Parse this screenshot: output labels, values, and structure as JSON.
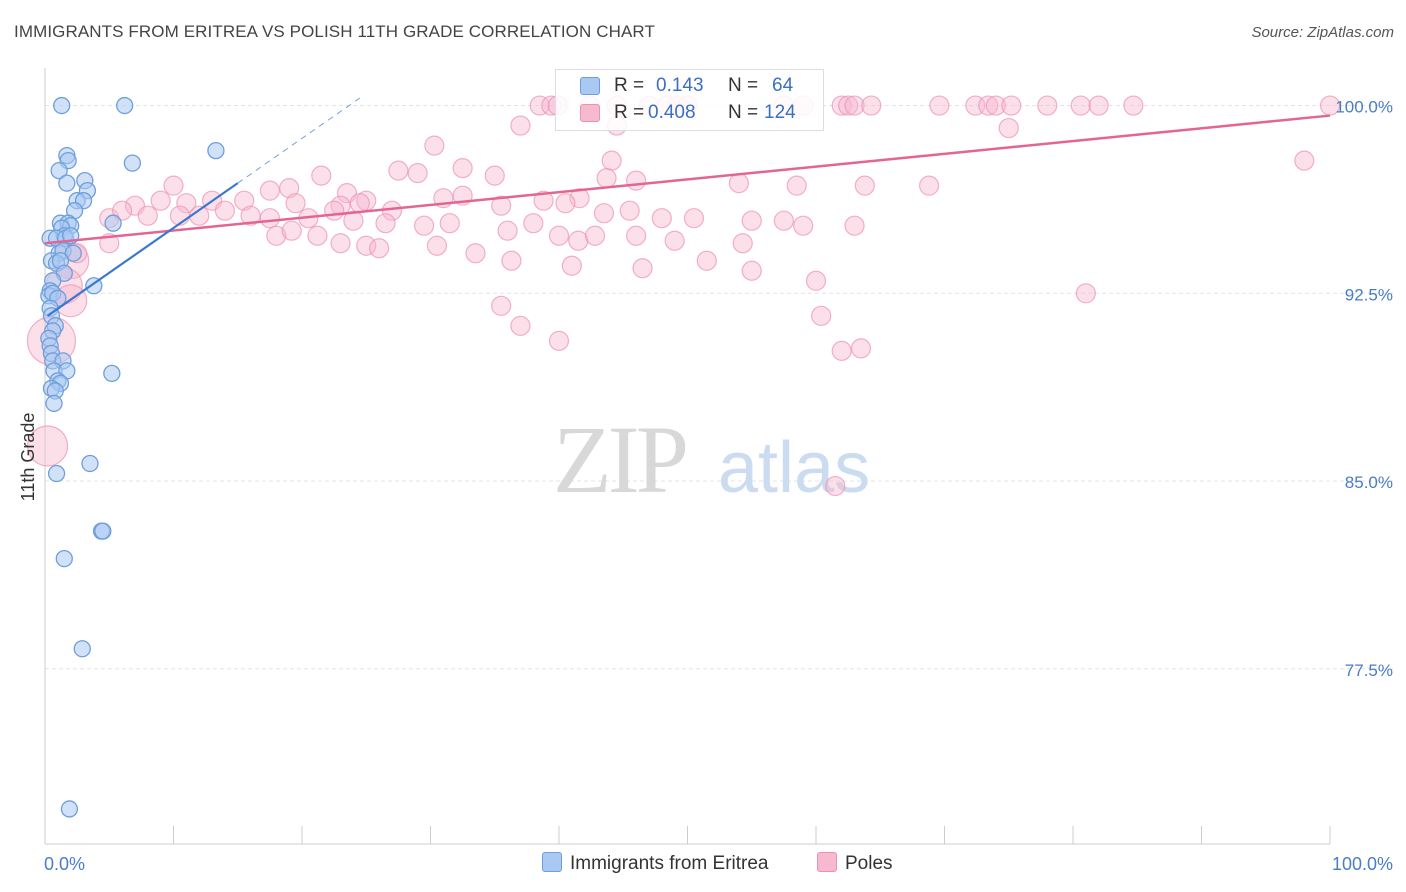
{
  "header": {
    "title": "IMMIGRANTS FROM ERITREA VS POLISH 11TH GRADE CORRELATION CHART",
    "source": "Source: ZipAtlas.com"
  },
  "watermark": {
    "zip": "ZIP",
    "atlas": "atlas"
  },
  "legend": {
    "rows": [
      {
        "r_label": "R =",
        "r_value": "0.143",
        "n_label": "N =",
        "n_value": "64"
      },
      {
        "r_label": "R =",
        "r_value": "0.408",
        "n_label": "N =",
        "n_value": "124"
      }
    ]
  },
  "bottom_legend": {
    "series1": "Immigrants from Eritrea",
    "series2": "Poles"
  },
  "colors": {
    "blue_fill": "#a9c8f2",
    "blue_stroke": "#6e9fdc",
    "blue_line": "#3a78d0",
    "pink_fill": "#f6b9cf",
    "pink_stroke": "#ec91b2",
    "pink_line": "#e36593",
    "tick_label": "#4a7cc7",
    "grid": "#e3e3e3"
  },
  "chart_data": {
    "type": "scatter",
    "title": "IMMIGRANTS FROM ERITREA VS POLISH 11TH GRADE CORRELATION CHART",
    "xlabel": "",
    "ylabel": "11th Grade",
    "xlim": [
      0,
      100
    ],
    "ylim": [
      70.5,
      101.5
    ],
    "x_tick_labels": [
      "0.0%",
      "100.0%"
    ],
    "y_ticks": [
      100.0,
      92.5,
      85.0,
      77.5
    ],
    "y_tick_labels": [
      "100.0%",
      "92.5%",
      "85.0%",
      "77.5%"
    ],
    "grid": true,
    "legend_position": "top-center",
    "series": [
      {
        "name": "Immigrants from Eritrea",
        "r": 0.143,
        "n": 64,
        "trend": {
          "x": [
            0.2,
            15.0
          ],
          "y": [
            91.6,
            96.9
          ],
          "dashed_to": {
            "x": 24.5,
            "y": 100.3
          }
        },
        "points": [
          [
            1.3,
            100.0
          ],
          [
            6.2,
            100.0
          ],
          [
            13.3,
            98.2
          ],
          [
            1.7,
            98.0
          ],
          [
            1.8,
            97.8
          ],
          [
            6.8,
            97.7
          ],
          [
            1.1,
            97.4
          ],
          [
            3.1,
            97.0
          ],
          [
            1.7,
            96.9
          ],
          [
            3.3,
            96.6
          ],
          [
            2.5,
            96.2
          ],
          [
            3.0,
            96.2
          ],
          [
            2.3,
            95.8
          ],
          [
            1.2,
            95.3
          ],
          [
            1.8,
            95.3
          ],
          [
            2.0,
            95.2
          ],
          [
            5.3,
            95.3
          ],
          [
            1.3,
            95.1
          ],
          [
            1.5,
            94.8
          ],
          [
            0.4,
            94.7
          ],
          [
            0.9,
            94.7
          ],
          [
            1.6,
            94.7
          ],
          [
            2.0,
            94.8
          ],
          [
            1.1,
            94.1
          ],
          [
            1.4,
            94.2
          ],
          [
            2.2,
            94.1
          ],
          [
            0.5,
            93.8
          ],
          [
            0.9,
            93.7
          ],
          [
            1.2,
            93.8
          ],
          [
            1.5,
            93.3
          ],
          [
            0.6,
            93.0
          ],
          [
            3.8,
            92.8
          ],
          [
            0.4,
            92.6
          ],
          [
            0.3,
            92.4
          ],
          [
            0.6,
            92.5
          ],
          [
            1.0,
            92.3
          ],
          [
            0.4,
            91.9
          ],
          [
            0.5,
            91.6
          ],
          [
            0.8,
            91.2
          ],
          [
            0.6,
            91.0
          ],
          [
            0.3,
            90.7
          ],
          [
            0.4,
            90.4
          ],
          [
            0.5,
            90.1
          ],
          [
            0.6,
            89.8
          ],
          [
            1.4,
            89.8
          ],
          [
            0.7,
            89.4
          ],
          [
            1.7,
            89.4
          ],
          [
            5.2,
            89.3
          ],
          [
            1.0,
            89.0
          ],
          [
            1.2,
            88.9
          ],
          [
            0.5,
            88.7
          ],
          [
            0.8,
            88.6
          ],
          [
            0.7,
            88.1
          ],
          [
            3.5,
            85.7
          ],
          [
            0.9,
            85.3
          ],
          [
            4.4,
            83.0
          ],
          [
            4.5,
            83.0
          ],
          [
            1.5,
            81.9
          ],
          [
            2.9,
            78.3
          ],
          [
            1.9,
            71.9
          ]
        ]
      },
      {
        "name": "Poles",
        "r": 0.408,
        "n": 124,
        "trend": {
          "x": [
            0.0,
            100.0
          ],
          "y": [
            94.5,
            99.6
          ]
        },
        "points": [
          [
            38.5,
            100.0
          ],
          [
            39.4,
            100.0
          ],
          [
            39.9,
            100.0
          ],
          [
            42.4,
            100.0
          ],
          [
            44.5,
            100.0
          ],
          [
            47.0,
            100.0
          ],
          [
            48.4,
            100.0
          ],
          [
            49.2,
            100.0
          ],
          [
            50.0,
            100.0
          ],
          [
            57.5,
            100.0
          ],
          [
            59.0,
            100.0
          ],
          [
            62.0,
            100.0
          ],
          [
            62.5,
            100.0
          ],
          [
            63.0,
            100.0
          ],
          [
            64.3,
            100.0
          ],
          [
            69.6,
            100.0
          ],
          [
            72.4,
            100.0
          ],
          [
            73.4,
            100.0
          ],
          [
            74.0,
            100.0
          ],
          [
            75.2,
            100.0
          ],
          [
            78.0,
            100.0
          ],
          [
            80.6,
            100.0
          ],
          [
            82.0,
            100.0
          ],
          [
            84.7,
            100.0
          ],
          [
            100.0,
            100.0
          ],
          [
            37.0,
            99.2
          ],
          [
            44.5,
            99.2
          ],
          [
            75.0,
            99.1
          ],
          [
            30.3,
            98.4
          ],
          [
            44.1,
            97.8
          ],
          [
            98.0,
            97.8
          ],
          [
            21.5,
            97.2
          ],
          [
            27.5,
            97.4
          ],
          [
            29.0,
            97.3
          ],
          [
            32.5,
            97.5
          ],
          [
            35.0,
            97.2
          ],
          [
            43.7,
            97.1
          ],
          [
            46.0,
            97.0
          ],
          [
            54.0,
            96.9
          ],
          [
            58.5,
            96.8
          ],
          [
            63.8,
            96.8
          ],
          [
            68.8,
            96.8
          ],
          [
            10.0,
            96.8
          ],
          [
            17.5,
            96.6
          ],
          [
            19.0,
            96.7
          ],
          [
            23.5,
            96.5
          ],
          [
            25.0,
            96.2
          ],
          [
            31.0,
            96.3
          ],
          [
            32.5,
            96.4
          ],
          [
            38.8,
            96.2
          ],
          [
            41.6,
            96.3
          ],
          [
            9.0,
            96.2
          ],
          [
            7.0,
            96.0
          ],
          [
            11.0,
            96.1
          ],
          [
            13.0,
            96.2
          ],
          [
            15.5,
            96.2
          ],
          [
            19.5,
            96.1
          ],
          [
            23.0,
            96.0
          ],
          [
            24.5,
            96.1
          ],
          [
            27.0,
            95.8
          ],
          [
            35.5,
            96.0
          ],
          [
            40.5,
            96.1
          ],
          [
            43.5,
            95.7
          ],
          [
            45.5,
            95.8
          ],
          [
            48.0,
            95.5
          ],
          [
            50.5,
            95.5
          ],
          [
            55.0,
            95.4
          ],
          [
            57.5,
            95.4
          ],
          [
            59.0,
            95.2
          ],
          [
            63.0,
            95.2
          ],
          [
            5.0,
            95.5
          ],
          [
            6.0,
            95.8
          ],
          [
            8.0,
            95.6
          ],
          [
            10.5,
            95.6
          ],
          [
            12.0,
            95.6
          ],
          [
            14.0,
            95.8
          ],
          [
            16.0,
            95.6
          ],
          [
            17.5,
            95.5
          ],
          [
            20.5,
            95.5
          ],
          [
            22.5,
            95.8
          ],
          [
            24.0,
            95.4
          ],
          [
            26.5,
            95.3
          ],
          [
            29.5,
            95.2
          ],
          [
            31.5,
            95.3
          ],
          [
            36.0,
            95.0
          ],
          [
            38.0,
            95.3
          ],
          [
            40.0,
            94.8
          ],
          [
            41.5,
            94.6
          ],
          [
            42.8,
            94.8
          ],
          [
            46.0,
            94.8
          ],
          [
            49.0,
            94.6
          ],
          [
            54.3,
            94.5
          ],
          [
            18.0,
            94.8
          ],
          [
            19.2,
            95.0
          ],
          [
            21.2,
            94.8
          ],
          [
            23.0,
            94.5
          ],
          [
            25.0,
            94.4
          ],
          [
            26.0,
            94.3
          ],
          [
            30.5,
            94.4
          ],
          [
            33.5,
            94.1
          ],
          [
            36.3,
            93.8
          ],
          [
            41.0,
            93.6
          ],
          [
            46.5,
            93.5
          ],
          [
            51.5,
            93.8
          ],
          [
            55.0,
            93.4
          ],
          [
            60.0,
            93.0
          ],
          [
            2.0,
            93.8
          ],
          [
            2.5,
            94.1
          ],
          [
            5.0,
            94.5
          ],
          [
            1.5,
            92.8
          ],
          [
            2.0,
            92.2
          ],
          [
            35.5,
            92.0
          ],
          [
            60.4,
            91.6
          ],
          [
            37.0,
            91.2
          ],
          [
            40.0,
            90.6
          ],
          [
            62.0,
            90.2
          ],
          [
            63.5,
            90.3
          ],
          [
            81.0,
            92.5
          ],
          [
            0.5,
            90.6
          ],
          [
            0.2,
            86.4
          ],
          [
            61.5,
            84.8
          ]
        ]
      }
    ]
  },
  "axis": {
    "x_left_label": "0.0%",
    "x_right_label": "100.0%",
    "y_label": "11th Grade"
  }
}
